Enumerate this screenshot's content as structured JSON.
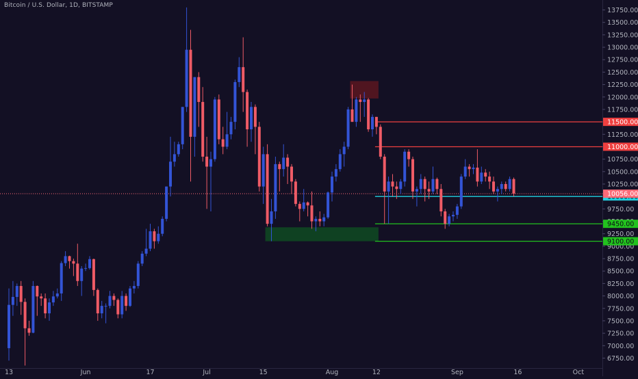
{
  "header": {
    "symbol_title": "Bitcoin / U.S. Dollar, 1D, BITSTAMP"
  },
  "colors": {
    "background": "#131024",
    "up_candle": "#3354d6",
    "down_candle": "#ef5b66",
    "axis_text": "#b2b5be",
    "grid": "#1c1933",
    "resistance_line": "#ef3f3f",
    "support_line": "#22c21e",
    "current_price_line": "#22d1e0",
    "last_price_line": "#ff6b78",
    "supply_zone": "#5c1620",
    "demand_zone": "#0f4a22"
  },
  "chart_data": {
    "type": "candlestick",
    "title": "Bitcoin / U.S. Dollar, 1D, BITSTAMP",
    "x_axis_labels": [
      "13",
      "Jun",
      "17",
      "Jul",
      "15",
      "Aug",
      "12",
      "Sep",
      "16",
      "Oct"
    ],
    "x_axis_label_dates": [
      "2019-05-13",
      "2019-06-01",
      "2019-06-17",
      "2019-07-01",
      "2019-07-15",
      "2019-08-01",
      "2019-08-12",
      "2019-09-01",
      "2019-09-16",
      "2019-10-01"
    ],
    "y_ticks": [
      6750,
      7000,
      7250,
      7500,
      7750,
      8000,
      8250,
      8500,
      8750,
      9000,
      9250,
      9500,
      9750,
      10000,
      10250,
      10500,
      10750,
      11000,
      11250,
      11500,
      11750,
      12000,
      12250,
      12500,
      12750,
      13000,
      13250,
      13500,
      13750
    ],
    "y_tick_labels": [
      "6750.00",
      "7000.00",
      "7250.00",
      "7500.00",
      "7750.00",
      "8000.00",
      "8250.00",
      "8500.00",
      "8750.00",
      "9000.00",
      "9250.00",
      "9500.00",
      "9750.00",
      "10000.00",
      "10250.00",
      "10500.00",
      "10750.00",
      "11000.00",
      "11250.00",
      "11500.00",
      "11750.00",
      "12000.00",
      "12250.00",
      "12500.00",
      "12750.00",
      "13000.00",
      "13250.00",
      "13500.00",
      "13750.00"
    ],
    "y_range": [
      6550,
      13950
    ],
    "grid": false,
    "current_price": {
      "value": 10056,
      "label": "10056.00"
    },
    "horizontal_levels": [
      {
        "value": 11500,
        "label": "11500.00",
        "kind": "resistance",
        "start_date": "2019-08-12"
      },
      {
        "value": 11000,
        "label": "11000.00",
        "kind": "resistance",
        "start_date": "2019-08-12"
      },
      {
        "value": 10000,
        "label": "10000.00",
        "kind": "current",
        "start_date": "2019-08-12"
      },
      {
        "value": 9450,
        "label": "9450.00",
        "kind": "support",
        "start_date": "2019-08-12"
      },
      {
        "value": 9100,
        "label": "9100.00",
        "kind": "support",
        "start_date": "2019-08-12"
      }
    ],
    "zones": [
      {
        "kind": "supply",
        "from_date": "2019-08-06",
        "to_date": "2019-08-12",
        "low": 11970,
        "high": 12320
      },
      {
        "kind": "demand",
        "from_date": "2019-07-16",
        "to_date": "2019-08-12",
        "low": 9100,
        "high": 9380
      }
    ],
    "candles": [
      {
        "date": "2019-05-13",
        "o": 6950,
        "h": 8150,
        "l": 6700,
        "c": 7820
      },
      {
        "date": "2019-05-14",
        "o": 7820,
        "h": 8300,
        "l": 7600,
        "c": 7980
      },
      {
        "date": "2019-05-15",
        "o": 7980,
        "h": 8250,
        "l": 7800,
        "c": 8200
      },
      {
        "date": "2019-05-16",
        "o": 8200,
        "h": 8300,
        "l": 7620,
        "c": 7880
      },
      {
        "date": "2019-05-17",
        "o": 7880,
        "h": 7950,
        "l": 6600,
        "c": 7350
      },
      {
        "date": "2019-05-18",
        "o": 7350,
        "h": 7500,
        "l": 7200,
        "c": 7260
      },
      {
        "date": "2019-05-19",
        "o": 7260,
        "h": 8300,
        "l": 7250,
        "c": 8200
      },
      {
        "date": "2019-05-20",
        "o": 8200,
        "h": 8210,
        "l": 7600,
        "c": 7990
      },
      {
        "date": "2019-05-21",
        "o": 7990,
        "h": 8050,
        "l": 7800,
        "c": 7950
      },
      {
        "date": "2019-05-22",
        "o": 7950,
        "h": 8050,
        "l": 7550,
        "c": 7650
      },
      {
        "date": "2019-05-23",
        "o": 7650,
        "h": 7950,
        "l": 7500,
        "c": 7870
      },
      {
        "date": "2019-05-24",
        "o": 7870,
        "h": 8100,
        "l": 7800,
        "c": 7990
      },
      {
        "date": "2019-05-25",
        "o": 7990,
        "h": 8150,
        "l": 7950,
        "c": 8050
      },
      {
        "date": "2019-05-26",
        "o": 8050,
        "h": 8700,
        "l": 7900,
        "c": 8660
      },
      {
        "date": "2019-05-27",
        "o": 8660,
        "h": 8900,
        "l": 8600,
        "c": 8800
      },
      {
        "date": "2019-05-28",
        "o": 8800,
        "h": 8810,
        "l": 8550,
        "c": 8700
      },
      {
        "date": "2019-05-29",
        "o": 8700,
        "h": 8750,
        "l": 8400,
        "c": 8650
      },
      {
        "date": "2019-05-30",
        "o": 8650,
        "h": 9050,
        "l": 8200,
        "c": 8300
      },
      {
        "date": "2019-05-31",
        "o": 8300,
        "h": 8600,
        "l": 8000,
        "c": 8550
      },
      {
        "date": "2019-06-01",
        "o": 8550,
        "h": 8650,
        "l": 8500,
        "c": 8560
      },
      {
        "date": "2019-06-02",
        "o": 8560,
        "h": 8800,
        "l": 8530,
        "c": 8740
      },
      {
        "date": "2019-06-03",
        "o": 8740,
        "h": 8750,
        "l": 8000,
        "c": 8120
      },
      {
        "date": "2019-06-04",
        "o": 8120,
        "h": 8150,
        "l": 7500,
        "c": 7650
      },
      {
        "date": "2019-06-05",
        "o": 7650,
        "h": 7900,
        "l": 7550,
        "c": 7800
      },
      {
        "date": "2019-06-06",
        "o": 7800,
        "h": 7850,
        "l": 7450,
        "c": 7800
      },
      {
        "date": "2019-06-07",
        "o": 7800,
        "h": 8100,
        "l": 7750,
        "c": 8000
      },
      {
        "date": "2019-06-08",
        "o": 8000,
        "h": 8050,
        "l": 7800,
        "c": 7920
      },
      {
        "date": "2019-06-09",
        "o": 7920,
        "h": 7950,
        "l": 7550,
        "c": 7630
      },
      {
        "date": "2019-06-10",
        "o": 7630,
        "h": 8100,
        "l": 7550,
        "c": 8000
      },
      {
        "date": "2019-06-11",
        "o": 8000,
        "h": 8050,
        "l": 7700,
        "c": 7800
      },
      {
        "date": "2019-06-12",
        "o": 7800,
        "h": 8200,
        "l": 7780,
        "c": 8150
      },
      {
        "date": "2019-06-13",
        "o": 8150,
        "h": 8300,
        "l": 8050,
        "c": 8200
      },
      {
        "date": "2019-06-14",
        "o": 8200,
        "h": 8700,
        "l": 8150,
        "c": 8650
      },
      {
        "date": "2019-06-15",
        "o": 8650,
        "h": 8900,
        "l": 8600,
        "c": 8850
      },
      {
        "date": "2019-06-16",
        "o": 8850,
        "h": 9350,
        "l": 8800,
        "c": 8950
      },
      {
        "date": "2019-06-17",
        "o": 8950,
        "h": 9450,
        "l": 8900,
        "c": 9300
      },
      {
        "date": "2019-06-18",
        "o": 9300,
        "h": 9350,
        "l": 8950,
        "c": 9100
      },
      {
        "date": "2019-06-19",
        "o": 9100,
        "h": 9400,
        "l": 9050,
        "c": 9250
      },
      {
        "date": "2019-06-20",
        "o": 9250,
        "h": 9600,
        "l": 9200,
        "c": 9550
      },
      {
        "date": "2019-06-21",
        "o": 9550,
        "h": 10200,
        "l": 9500,
        "c": 10200
      },
      {
        "date": "2019-06-22",
        "o": 10200,
        "h": 11200,
        "l": 10000,
        "c": 10700
      },
      {
        "date": "2019-06-23",
        "o": 10700,
        "h": 11100,
        "l": 10600,
        "c": 10850
      },
      {
        "date": "2019-06-24",
        "o": 10850,
        "h": 11100,
        "l": 10800,
        "c": 11050
      },
      {
        "date": "2019-06-25",
        "o": 11050,
        "h": 11800,
        "l": 10950,
        "c": 11800
      },
      {
        "date": "2019-06-26",
        "o": 11800,
        "h": 13800,
        "l": 11700,
        "c": 12950
      },
      {
        "date": "2019-06-27",
        "o": 12950,
        "h": 13350,
        "l": 10300,
        "c": 11200
      },
      {
        "date": "2019-06-28",
        "o": 11200,
        "h": 12400,
        "l": 10800,
        "c": 12400
      },
      {
        "date": "2019-06-29",
        "o": 12400,
        "h": 12500,
        "l": 11400,
        "c": 11900
      },
      {
        "date": "2019-06-30",
        "o": 11900,
        "h": 12200,
        "l": 10700,
        "c": 10800
      },
      {
        "date": "2019-07-01",
        "o": 10800,
        "h": 11200,
        "l": 9750,
        "c": 10600
      },
      {
        "date": "2019-07-02",
        "o": 10600,
        "h": 10900,
        "l": 9700,
        "c": 10750
      },
      {
        "date": "2019-07-03",
        "o": 10750,
        "h": 12000,
        "l": 10700,
        "c": 11950
      },
      {
        "date": "2019-07-04",
        "o": 11950,
        "h": 12050,
        "l": 11050,
        "c": 11150
      },
      {
        "date": "2019-07-05",
        "o": 11150,
        "h": 11400,
        "l": 10850,
        "c": 11000
      },
      {
        "date": "2019-07-06",
        "o": 11000,
        "h": 11700,
        "l": 10950,
        "c": 11250
      },
      {
        "date": "2019-07-07",
        "o": 11250,
        "h": 11600,
        "l": 11150,
        "c": 11500
      },
      {
        "date": "2019-07-08",
        "o": 11500,
        "h": 12350,
        "l": 11350,
        "c": 12300
      },
      {
        "date": "2019-07-09",
        "o": 12300,
        "h": 12800,
        "l": 12200,
        "c": 12600
      },
      {
        "date": "2019-07-10",
        "o": 12600,
        "h": 13200,
        "l": 11700,
        "c": 12100
      },
      {
        "date": "2019-07-11",
        "o": 12100,
        "h": 12150,
        "l": 11000,
        "c": 11350
      },
      {
        "date": "2019-07-12",
        "o": 11350,
        "h": 11900,
        "l": 11100,
        "c": 11800
      },
      {
        "date": "2019-07-13",
        "o": 11800,
        "h": 11850,
        "l": 10850,
        "c": 11400
      },
      {
        "date": "2019-07-14",
        "o": 11400,
        "h": 11500,
        "l": 10100,
        "c": 10200
      },
      {
        "date": "2019-07-15",
        "o": 10200,
        "h": 11000,
        "l": 9850,
        "c": 10850
      },
      {
        "date": "2019-07-16",
        "o": 10850,
        "h": 11050,
        "l": 9400,
        "c": 9450
      },
      {
        "date": "2019-07-17",
        "o": 9450,
        "h": 9950,
        "l": 9100,
        "c": 9700
      },
      {
        "date": "2019-07-18",
        "o": 9700,
        "h": 10800,
        "l": 9550,
        "c": 10650
      },
      {
        "date": "2019-07-19",
        "o": 10650,
        "h": 10700,
        "l": 10100,
        "c": 10550
      },
      {
        "date": "2019-07-20",
        "o": 10550,
        "h": 11050,
        "l": 10400,
        "c": 10780
      },
      {
        "date": "2019-07-21",
        "o": 10780,
        "h": 10850,
        "l": 10250,
        "c": 10600
      },
      {
        "date": "2019-07-22",
        "o": 10600,
        "h": 10650,
        "l": 10050,
        "c": 10300
      },
      {
        "date": "2019-07-23",
        "o": 10300,
        "h": 10350,
        "l": 9800,
        "c": 9850
      },
      {
        "date": "2019-07-24",
        "o": 9850,
        "h": 9900,
        "l": 9500,
        "c": 9750
      },
      {
        "date": "2019-07-25",
        "o": 9750,
        "h": 10150,
        "l": 9700,
        "c": 9880
      },
      {
        "date": "2019-07-26",
        "o": 9880,
        "h": 9900,
        "l": 9600,
        "c": 9820
      },
      {
        "date": "2019-07-27",
        "o": 9820,
        "h": 10100,
        "l": 9350,
        "c": 9500
      },
      {
        "date": "2019-07-28",
        "o": 9500,
        "h": 9600,
        "l": 9300,
        "c": 9550
      },
      {
        "date": "2019-07-29",
        "o": 9550,
        "h": 9700,
        "l": 9400,
        "c": 9500
      },
      {
        "date": "2019-07-30",
        "o": 9500,
        "h": 9650,
        "l": 9400,
        "c": 9580
      },
      {
        "date": "2019-07-31",
        "o": 9580,
        "h": 10100,
        "l": 9550,
        "c": 10080
      },
      {
        "date": "2019-08-01",
        "o": 10080,
        "h": 10500,
        "l": 9900,
        "c": 10400
      },
      {
        "date": "2019-08-02",
        "o": 10400,
        "h": 10650,
        "l": 10300,
        "c": 10550
      },
      {
        "date": "2019-08-03",
        "o": 10550,
        "h": 10950,
        "l": 10500,
        "c": 10850
      },
      {
        "date": "2019-08-04",
        "o": 10850,
        "h": 11100,
        "l": 10600,
        "c": 11000
      },
      {
        "date": "2019-08-05",
        "o": 11000,
        "h": 11800,
        "l": 10950,
        "c": 11750
      },
      {
        "date": "2019-08-06",
        "o": 11750,
        "h": 12250,
        "l": 11500,
        "c": 11500
      },
      {
        "date": "2019-08-07",
        "o": 11500,
        "h": 12000,
        "l": 11400,
        "c": 11950
      },
      {
        "date": "2019-08-08",
        "o": 11950,
        "h": 12050,
        "l": 11500,
        "c": 11900
      },
      {
        "date": "2019-08-09",
        "o": 11900,
        "h": 12100,
        "l": 11600,
        "c": 11950
      },
      {
        "date": "2019-08-10",
        "o": 11950,
        "h": 11980,
        "l": 11300,
        "c": 11350
      },
      {
        "date": "2019-08-11",
        "o": 11350,
        "h": 11650,
        "l": 11200,
        "c": 11600
      },
      {
        "date": "2019-08-12",
        "o": 11600,
        "h": 11600,
        "l": 11250,
        "c": 11400
      },
      {
        "date": "2019-08-13",
        "o": 11400,
        "h": 11450,
        "l": 10750,
        "c": 10800
      },
      {
        "date": "2019-08-14",
        "o": 10800,
        "h": 10850,
        "l": 9450,
        "c": 10100
      },
      {
        "date": "2019-08-15",
        "o": 10100,
        "h": 10400,
        "l": 9450,
        "c": 10300
      },
      {
        "date": "2019-08-16",
        "o": 10300,
        "h": 10450,
        "l": 10000,
        "c": 10200
      },
      {
        "date": "2019-08-17",
        "o": 10200,
        "h": 10300,
        "l": 9950,
        "c": 10150
      },
      {
        "date": "2019-08-18",
        "o": 10150,
        "h": 10350,
        "l": 10050,
        "c": 10300
      },
      {
        "date": "2019-08-19",
        "o": 10300,
        "h": 10950,
        "l": 10200,
        "c": 10900
      },
      {
        "date": "2019-08-20",
        "o": 10900,
        "h": 10950,
        "l": 10600,
        "c": 10750
      },
      {
        "date": "2019-08-21",
        "o": 10750,
        "h": 10800,
        "l": 9950,
        "c": 10100
      },
      {
        "date": "2019-08-22",
        "o": 10100,
        "h": 10200,
        "l": 9800,
        "c": 10150
      },
      {
        "date": "2019-08-23",
        "o": 10150,
        "h": 10450,
        "l": 10050,
        "c": 10350
      },
      {
        "date": "2019-08-24",
        "o": 10350,
        "h": 10400,
        "l": 9900,
        "c": 10150
      },
      {
        "date": "2019-08-25",
        "o": 10150,
        "h": 10300,
        "l": 9950,
        "c": 10100
      },
      {
        "date": "2019-08-26",
        "o": 10100,
        "h": 10600,
        "l": 10050,
        "c": 10350
      },
      {
        "date": "2019-08-27",
        "o": 10350,
        "h": 10380,
        "l": 10050,
        "c": 10150
      },
      {
        "date": "2019-08-28",
        "o": 10150,
        "h": 10250,
        "l": 9600,
        "c": 9700
      },
      {
        "date": "2019-08-29",
        "o": 9700,
        "h": 9750,
        "l": 9350,
        "c": 9450
      },
      {
        "date": "2019-08-30",
        "o": 9450,
        "h": 9650,
        "l": 9400,
        "c": 9600
      },
      {
        "date": "2019-08-31",
        "o": 9600,
        "h": 9700,
        "l": 9500,
        "c": 9630
      },
      {
        "date": "2019-09-01",
        "o": 9630,
        "h": 9850,
        "l": 9550,
        "c": 9800
      },
      {
        "date": "2019-09-02",
        "o": 9800,
        "h": 10450,
        "l": 9750,
        "c": 10400
      },
      {
        "date": "2019-09-03",
        "o": 10400,
        "h": 10750,
        "l": 10350,
        "c": 10600
      },
      {
        "date": "2019-09-04",
        "o": 10600,
        "h": 10650,
        "l": 10400,
        "c": 10550
      },
      {
        "date": "2019-09-05",
        "o": 10550,
        "h": 10650,
        "l": 10450,
        "c": 10580
      },
      {
        "date": "2019-09-06",
        "o": 10580,
        "h": 10950,
        "l": 10200,
        "c": 10300
      },
      {
        "date": "2019-09-07",
        "o": 10300,
        "h": 10600,
        "l": 10250,
        "c": 10480
      },
      {
        "date": "2019-09-08",
        "o": 10480,
        "h": 10550,
        "l": 10300,
        "c": 10400
      },
      {
        "date": "2019-09-09",
        "o": 10400,
        "h": 10500,
        "l": 10150,
        "c": 10300
      },
      {
        "date": "2019-09-10",
        "o": 10300,
        "h": 10400,
        "l": 10050,
        "c": 10100
      },
      {
        "date": "2019-09-11",
        "o": 10100,
        "h": 10200,
        "l": 9900,
        "c": 10150
      },
      {
        "date": "2019-09-12",
        "o": 10150,
        "h": 10300,
        "l": 10050,
        "c": 10250
      },
      {
        "date": "2019-09-13",
        "o": 10250,
        "h": 10300,
        "l": 10100,
        "c": 10150
      },
      {
        "date": "2019-09-14",
        "o": 10150,
        "h": 10400,
        "l": 10100,
        "c": 10350
      },
      {
        "date": "2019-09-15",
        "o": 10350,
        "h": 10380,
        "l": 10000,
        "c": 10056
      }
    ]
  }
}
